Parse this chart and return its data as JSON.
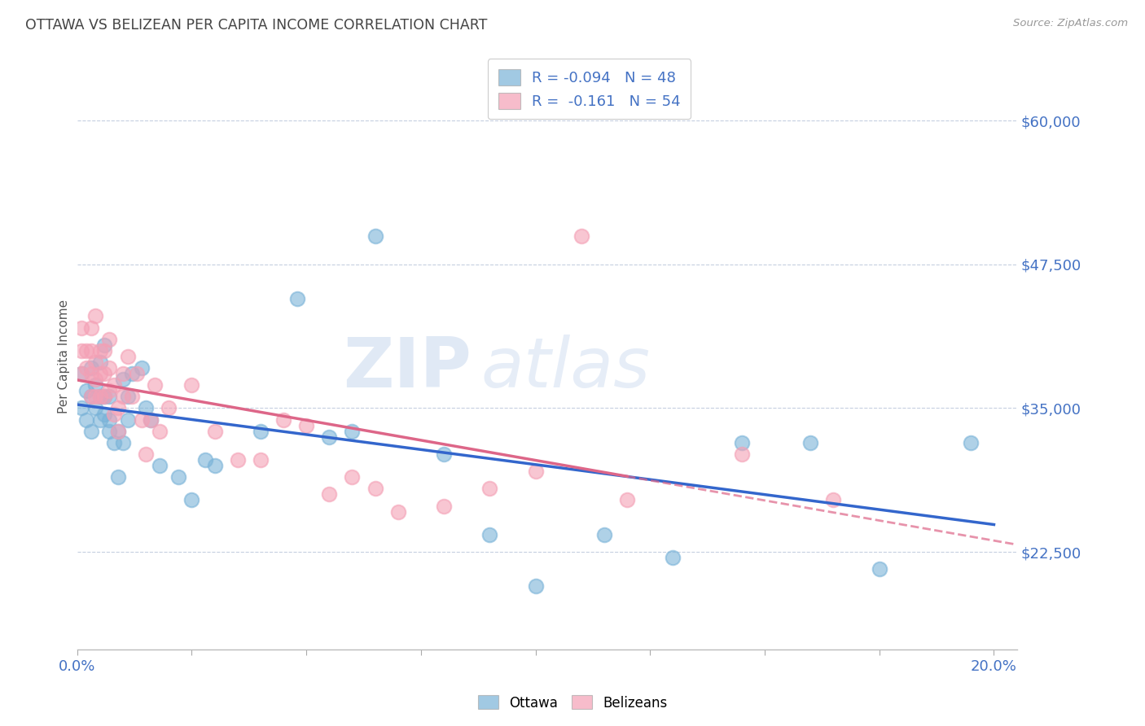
{
  "title": "OTTAWA VS BELIZEAN PER CAPITA INCOME CORRELATION CHART",
  "source": "Source: ZipAtlas.com",
  "ylabel": "Per Capita Income",
  "xlim": [
    0.0,
    0.205
  ],
  "ylim": [
    14000,
    65000
  ],
  "yticks": [
    22500,
    35000,
    47500,
    60000
  ],
  "ytick_labels": [
    "$22,500",
    "$35,000",
    "$47,500",
    "$60,000"
  ],
  "xticks": [
    0.0,
    0.025,
    0.05,
    0.075,
    0.1,
    0.125,
    0.15,
    0.175,
    0.2
  ],
  "xtick_labels": [
    "0.0%",
    "",
    "",
    "",
    "",
    "",
    "",
    "",
    "20.0%"
  ],
  "ottawa_color": "#7ab3d8",
  "belizean_color": "#f4a0b5",
  "trend_ottawa_color": "#3366cc",
  "trend_belizean_color": "#dd6688",
  "watermark_zip": "ZIP",
  "watermark_atlas": "atlas",
  "legend_R_ottawa": "R = -0.094",
  "legend_N_ottawa": "N = 48",
  "legend_R_belizean": "R =  -0.161",
  "legend_N_belizean": "N = 54",
  "ottawa_x": [
    0.001,
    0.001,
    0.002,
    0.002,
    0.003,
    0.003,
    0.003,
    0.004,
    0.004,
    0.005,
    0.005,
    0.005,
    0.006,
    0.006,
    0.006,
    0.007,
    0.007,
    0.007,
    0.008,
    0.009,
    0.009,
    0.01,
    0.01,
    0.011,
    0.011,
    0.012,
    0.014,
    0.015,
    0.016,
    0.018,
    0.022,
    0.025,
    0.028,
    0.03,
    0.04,
    0.048,
    0.055,
    0.06,
    0.065,
    0.08,
    0.09,
    0.1,
    0.115,
    0.13,
    0.145,
    0.16,
    0.175,
    0.195
  ],
  "ottawa_y": [
    35000,
    38000,
    34000,
    36500,
    33000,
    36000,
    38500,
    35000,
    37000,
    34000,
    36000,
    39000,
    34500,
    36000,
    40500,
    34000,
    36000,
    33000,
    32000,
    29000,
    33000,
    37500,
    32000,
    34000,
    36000,
    38000,
    38500,
    35000,
    34000,
    30000,
    29000,
    27000,
    30500,
    30000,
    33000,
    44500,
    32500,
    33000,
    50000,
    31000,
    24000,
    19500,
    24000,
    22000,
    32000,
    32000,
    21000,
    32000
  ],
  "belizean_x": [
    0.001,
    0.001,
    0.001,
    0.002,
    0.002,
    0.003,
    0.003,
    0.003,
    0.003,
    0.004,
    0.004,
    0.004,
    0.004,
    0.005,
    0.005,
    0.005,
    0.006,
    0.006,
    0.006,
    0.007,
    0.007,
    0.007,
    0.008,
    0.008,
    0.009,
    0.009,
    0.01,
    0.01,
    0.011,
    0.012,
    0.013,
    0.014,
    0.015,
    0.016,
    0.017,
    0.018,
    0.02,
    0.025,
    0.03,
    0.035,
    0.04,
    0.045,
    0.05,
    0.055,
    0.06,
    0.065,
    0.07,
    0.08,
    0.09,
    0.1,
    0.11,
    0.12,
    0.145,
    0.165
  ],
  "belizean_y": [
    38000,
    40000,
    42000,
    38500,
    40000,
    36000,
    38000,
    40000,
    42000,
    36000,
    37500,
    39000,
    43000,
    36000,
    38000,
    40000,
    36000,
    38000,
    40000,
    36500,
    38500,
    41000,
    34500,
    37000,
    35000,
    33000,
    36000,
    38000,
    39500,
    36000,
    38000,
    34000,
    31000,
    34000,
    37000,
    33000,
    35000,
    37000,
    33000,
    30500,
    30500,
    34000,
    33500,
    27500,
    29000,
    28000,
    26000,
    26500,
    28000,
    29500,
    50000,
    27000,
    31000,
    27000
  ]
}
